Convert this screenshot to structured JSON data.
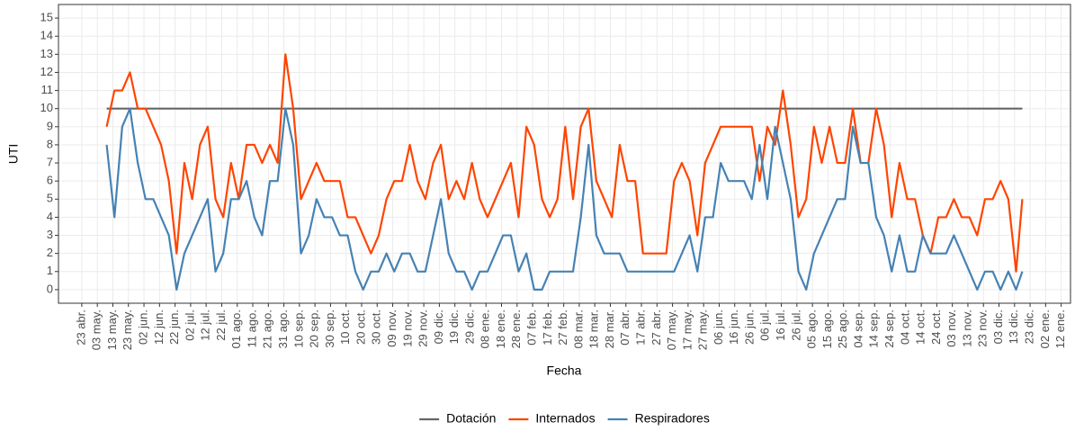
{
  "chart_data": {
    "type": "line",
    "x_label": "Fecha",
    "y_label": "UTI",
    "xlim": [
      -15,
      636
    ],
    "ylim": [
      -0.75,
      15.75
    ],
    "yticks": [
      0,
      1,
      2,
      3,
      4,
      5,
      6,
      7,
      8,
      9,
      10,
      11,
      12,
      13,
      14,
      15
    ],
    "xticks": [
      {
        "value": 0,
        "label": "23 abr."
      },
      {
        "value": 10,
        "label": "03 may."
      },
      {
        "value": 20,
        "label": "13 may."
      },
      {
        "value": 30,
        "label": "23 may."
      },
      {
        "value": 40,
        "label": "02 jun."
      },
      {
        "value": 50,
        "label": "12 jun."
      },
      {
        "value": 60,
        "label": "22 jun."
      },
      {
        "value": 70,
        "label": "02 jul."
      },
      {
        "value": 80,
        "label": "12 jul."
      },
      {
        "value": 90,
        "label": "22 jul."
      },
      {
        "value": 100,
        "label": "01 ago."
      },
      {
        "value": 110,
        "label": "11 ago."
      },
      {
        "value": 120,
        "label": "21 ago."
      },
      {
        "value": 130,
        "label": "31 ago."
      },
      {
        "value": 140,
        "label": "10 sep."
      },
      {
        "value": 150,
        "label": "20 sep."
      },
      {
        "value": 160,
        "label": "30 sep."
      },
      {
        "value": 170,
        "label": "10 oct."
      },
      {
        "value": 180,
        "label": "20 oct."
      },
      {
        "value": 190,
        "label": "30 oct."
      },
      {
        "value": 200,
        "label": "09 nov."
      },
      {
        "value": 210,
        "label": "19 nov."
      },
      {
        "value": 220,
        "label": "29 nov."
      },
      {
        "value": 230,
        "label": "09 dic."
      },
      {
        "value": 240,
        "label": "19 dic."
      },
      {
        "value": 250,
        "label": "29 dic."
      },
      {
        "value": 260,
        "label": "08 ene."
      },
      {
        "value": 270,
        "label": "18 ene."
      },
      {
        "value": 280,
        "label": "28 ene."
      },
      {
        "value": 290,
        "label": "07 feb."
      },
      {
        "value": 300,
        "label": "17 feb."
      },
      {
        "value": 310,
        "label": "27 feb."
      },
      {
        "value": 320,
        "label": "08 mar."
      },
      {
        "value": 330,
        "label": "18 mar."
      },
      {
        "value": 340,
        "label": "28 mar."
      },
      {
        "value": 350,
        "label": "07 abr."
      },
      {
        "value": 360,
        "label": "17 abr."
      },
      {
        "value": 370,
        "label": "27 abr."
      },
      {
        "value": 380,
        "label": "07 may."
      },
      {
        "value": 390,
        "label": "17 may."
      },
      {
        "value": 400,
        "label": "27 may."
      },
      {
        "value": 410,
        "label": "06 jun."
      },
      {
        "value": 420,
        "label": "16 jun."
      },
      {
        "value": 430,
        "label": "26 jun."
      },
      {
        "value": 440,
        "label": "06 jul."
      },
      {
        "value": 450,
        "label": "16 jul."
      },
      {
        "value": 460,
        "label": "26 jul."
      },
      {
        "value": 470,
        "label": "05 ago."
      },
      {
        "value": 480,
        "label": "15 ago."
      },
      {
        "value": 490,
        "label": "25 ago."
      },
      {
        "value": 500,
        "label": "04 sep."
      },
      {
        "value": 510,
        "label": "14 sep."
      },
      {
        "value": 520,
        "label": "24 sep."
      },
      {
        "value": 530,
        "label": "04 oct."
      },
      {
        "value": 540,
        "label": "14 oct."
      },
      {
        "value": 550,
        "label": "24 oct."
      },
      {
        "value": 560,
        "label": "03 nov."
      },
      {
        "value": 570,
        "label": "13 nov."
      },
      {
        "value": 580,
        "label": "23 nov."
      },
      {
        "value": 590,
        "label": "03 dic."
      },
      {
        "value": 600,
        "label": "13 dic."
      },
      {
        "value": 610,
        "label": "23 dic."
      },
      {
        "value": 620,
        "label": "02 ene."
      },
      {
        "value": 630,
        "label": "12 ene."
      }
    ],
    "grid": true,
    "x": [
      16,
      21,
      26,
      31,
      36,
      41,
      46,
      51,
      56,
      61,
      66,
      71,
      76,
      81,
      86,
      91,
      96,
      101,
      106,
      111,
      116,
      121,
      126,
      131,
      136,
      141,
      146,
      151,
      156,
      161,
      166,
      171,
      176,
      181,
      186,
      191,
      196,
      201,
      206,
      211,
      216,
      221,
      226,
      231,
      236,
      241,
      246,
      251,
      256,
      261,
      266,
      271,
      276,
      281,
      286,
      291,
      296,
      301,
      306,
      311,
      316,
      321,
      326,
      331,
      336,
      341,
      346,
      351,
      356,
      361,
      366,
      371,
      376,
      381,
      386,
      391,
      396,
      401,
      406,
      411,
      416,
      421,
      426,
      431,
      436,
      441,
      446,
      451,
      456,
      461,
      466,
      471,
      476,
      481,
      486,
      491,
      496,
      501,
      506,
      511,
      516,
      521,
      526,
      531,
      536,
      541,
      546,
      551,
      556,
      561,
      566,
      571,
      576,
      581,
      586,
      591,
      596,
      601,
      605
    ],
    "series": [
      {
        "name": "Dotación",
        "color": "#666666",
        "x": [
          16,
          605
        ],
        "values": [
          10,
          10
        ]
      },
      {
        "name": "Internados",
        "color": "#ff4500",
        "values": [
          9,
          11,
          11,
          12,
          10,
          10,
          9,
          8,
          6,
          2,
          7,
          5,
          8,
          9,
          5,
          4,
          7,
          5,
          8,
          8,
          7,
          8,
          7,
          13,
          10,
          5,
          6,
          7,
          6,
          6,
          6,
          4,
          4,
          3,
          2,
          3,
          5,
          6,
          6,
          8,
          6,
          5,
          7,
          8,
          5,
          6,
          5,
          7,
          5,
          4,
          5,
          6,
          7,
          4,
          9,
          8,
          5,
          4,
          5,
          9,
          5,
          9,
          10,
          6,
          5,
          4,
          8,
          6,
          6,
          2,
          2,
          2,
          2,
          6,
          7,
          6,
          3,
          7,
          8,
          9,
          9,
          9,
          9,
          9,
          6,
          9,
          8,
          11,
          8,
          4,
          5,
          9,
          7,
          9,
          7,
          7,
          10,
          7,
          7,
          10,
          8,
          4,
          7,
          5,
          5,
          3,
          2,
          4,
          4,
          5,
          4,
          4,
          3,
          5,
          5,
          6,
          5,
          1,
          5
        ]
      },
      {
        "name": "Respiradores",
        "color": "#4682b4",
        "values": [
          8,
          4,
          9,
          10,
          7,
          5,
          5,
          4,
          3,
          0,
          2,
          3,
          4,
          5,
          1,
          2,
          5,
          5,
          6,
          4,
          3,
          6,
          6,
          10,
          8,
          2,
          3,
          5,
          4,
          4,
          3,
          3,
          1,
          0,
          1,
          1,
          2,
          1,
          2,
          2,
          1,
          1,
          3,
          5,
          2,
          1,
          1,
          0,
          1,
          1,
          2,
          3,
          3,
          1,
          2,
          0,
          0,
          1,
          1,
          1,
          1,
          4,
          8,
          3,
          2,
          2,
          2,
          1,
          1,
          1,
          1,
          1,
          1,
          1,
          2,
          3,
          1,
          4,
          4,
          7,
          6,
          6,
          6,
          5,
          8,
          5,
          9,
          7,
          5,
          1,
          0,
          2,
          3,
          4,
          5,
          5,
          9,
          7,
          7,
          4,
          3,
          1,
          3,
          1,
          1,
          3,
          2,
          2,
          2,
          3,
          2,
          1,
          0,
          1,
          1,
          0,
          1,
          0,
          1
        ]
      }
    ],
    "legend_position": "bottom"
  }
}
